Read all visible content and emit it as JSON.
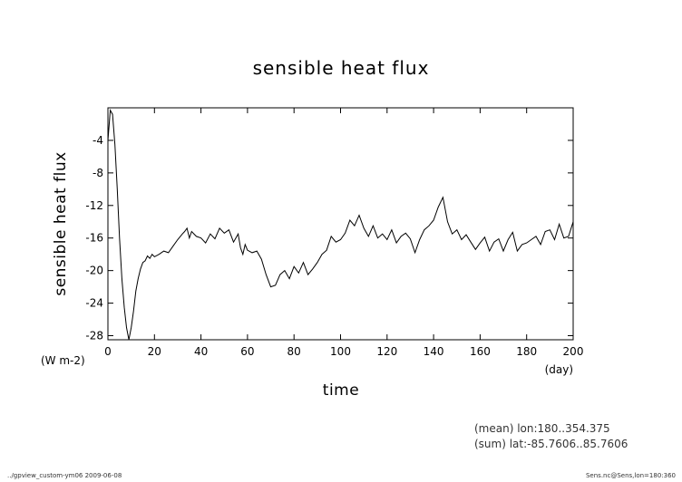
{
  "chart_data": {
    "type": "line",
    "title": "sensible heat flux",
    "xlabel": "time",
    "ylabel": "sensible heat flux",
    "x_unit": "(day)",
    "y_unit": "(W m-2)",
    "xlim": [
      0,
      200
    ],
    "ylim": [
      -28.5,
      0
    ],
    "xticks": [
      0,
      20,
      40,
      60,
      80,
      100,
      120,
      140,
      160,
      180,
      200
    ],
    "yticks": [
      -28,
      -24,
      -20,
      -16,
      -12,
      -8,
      -4
    ],
    "grid": false,
    "x": [
      0,
      1,
      2,
      3,
      4,
      5,
      6,
      7,
      8,
      9,
      10,
      11,
      12,
      13,
      14,
      15,
      16,
      17,
      18,
      19,
      20,
      22,
      24,
      26,
      28,
      30,
      32,
      33,
      34,
      35,
      36,
      38,
      40,
      42,
      44,
      46,
      48,
      50,
      52,
      54,
      56,
      57,
      58,
      59,
      60,
      62,
      64,
      66,
      68,
      70,
      72,
      74,
      76,
      78,
      80,
      82,
      84,
      86,
      88,
      90,
      92,
      94,
      96,
      98,
      100,
      102,
      104,
      106,
      108,
      110,
      112,
      114,
      116,
      118,
      120,
      122,
      124,
      126,
      128,
      130,
      132,
      134,
      136,
      138,
      140,
      142,
      144,
      146,
      148,
      150,
      152,
      154,
      156,
      158,
      160,
      162,
      164,
      166,
      168,
      170,
      172,
      174,
      176,
      178,
      180,
      182,
      184,
      186,
      188,
      190,
      192,
      194,
      196,
      198,
      200
    ],
    "y": [
      -4,
      -0.3,
      -0.8,
      -4.5,
      -10,
      -16,
      -21,
      -24.5,
      -27,
      -28.5,
      -27,
      -25,
      -22.5,
      -21,
      -19.8,
      -19,
      -18.8,
      -18.2,
      -18.5,
      -18,
      -18.3,
      -18,
      -17.6,
      -17.8,
      -17,
      -16.2,
      -15.5,
      -15.2,
      -14.8,
      -16,
      -15.2,
      -15.8,
      -16,
      -16.6,
      -15.5,
      -16.1,
      -14.8,
      -15.4,
      -15,
      -16.5,
      -15.5,
      -17.2,
      -18,
      -16.8,
      -17.5,
      -17.8,
      -17.6,
      -18.6,
      -20.5,
      -22,
      -21.8,
      -20.5,
      -20,
      -21,
      -19.5,
      -20.3,
      -19,
      -20.5,
      -19.8,
      -19,
      -18,
      -17.5,
      -15.8,
      -16.5,
      -16.2,
      -15.4,
      -13.8,
      -14.5,
      -13.2,
      -14.8,
      -15.8,
      -14.5,
      -16,
      -15.5,
      -16.2,
      -15,
      -16.6,
      -15.8,
      -15.4,
      -16.1,
      -17.8,
      -16.2,
      -15,
      -14.5,
      -13.8,
      -12.2,
      -11,
      -14,
      -15.5,
      -15,
      -16.2,
      -15.6,
      -16.5,
      -17.4,
      -16.6,
      -15.9,
      -17.6,
      -16.5,
      -16.1,
      -17.6,
      -16.2,
      -15.3,
      -17.6,
      -16.8,
      -16.6,
      -16.2,
      -15.8,
      -16.8,
      -15.2,
      -15,
      -16.2,
      -14.3,
      -16,
      -15.8,
      -14
    ]
  },
  "notes": {
    "mean": "(mean) lon:180..354.375",
    "sum": "(sum) lat:-85.7606..85.7606"
  },
  "footer": {
    "left": "../gpview_custom-ym06  2009-06-08",
    "right": "Sens.nc@Sens,lon=180:360"
  }
}
